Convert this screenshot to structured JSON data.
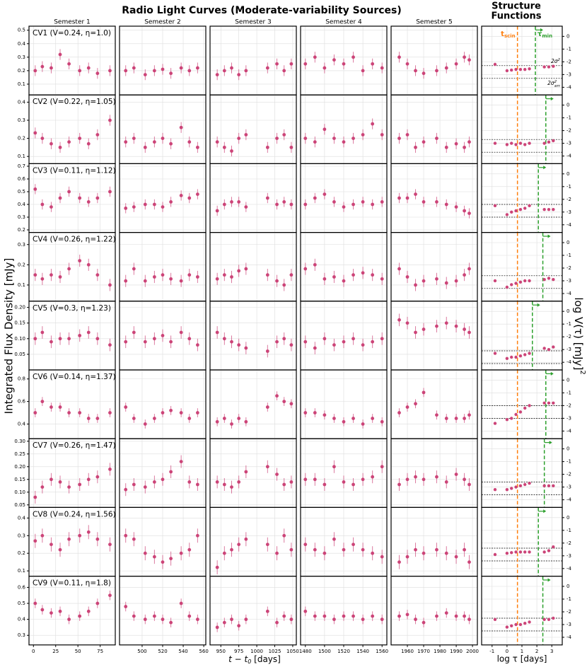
{
  "chart_data": {
    "type": "light-curve-grid",
    "title": "Radio Light Curves (Moderate-variability Sources)",
    "ylabel": "Integrated Flux Density [mJy]",
    "xlabel": {
      "main": "t − t",
      "sub": "0",
      "rest": " [days]"
    },
    "color": "#cc4478",
    "grid": true,
    "semesters": [
      {
        "name": "Semester 1",
        "xlim": [
          -5,
          92
        ],
        "xticks": [
          0,
          25,
          50,
          75
        ],
        "x": [
          2,
          10,
          20,
          30,
          40,
          52,
          62,
          72,
          86
        ]
      },
      {
        "name": "Semester 2",
        "xlim": [
          478,
          562
        ],
        "xticks": [
          500,
          520,
          540,
          560
        ],
        "x": [
          484,
          492,
          503,
          512,
          520,
          528,
          538,
          546,
          554
        ]
      },
      {
        "name": "Semester 3",
        "xlim": [
          935,
          1055
        ],
        "xticks": [
          950,
          975,
          1000,
          1025,
          1050
        ],
        "x": [
          945,
          955,
          965,
          975,
          985,
          1015,
          1028,
          1038,
          1048
        ]
      },
      {
        "name": "Semester 4",
        "xlim": [
          1475,
          1565
        ],
        "xticks": [
          1480,
          1500,
          1520,
          1540,
          1560
        ],
        "x": [
          1480,
          1490,
          1500,
          1510,
          1520,
          1530,
          1540,
          1550,
          1560
        ]
      },
      {
        "name": "Semester 5",
        "xlim": [
          1950,
          2003
        ],
        "xticks": [
          1960,
          1970,
          1980,
          1990,
          2000
        ],
        "x": [
          1955,
          1960,
          1965,
          1970,
          1978,
          1984,
          1990,
          1995,
          1998
        ]
      }
    ],
    "sources": [
      {
        "name": "CV1 (V=0.24, η=1.0)",
        "ylim": [
          0.02,
          0.53
        ],
        "yticks": [
          0.1,
          0.2,
          0.3,
          0.4,
          0.5
        ],
        "err": 0.04,
        "values": [
          [
            0.2,
            0.23,
            0.22,
            0.32,
            0.25,
            0.2,
            0.22,
            0.18,
            0.2
          ],
          [
            0.2,
            0.22,
            0.17,
            0.2,
            0.21,
            0.18,
            0.22,
            0.2,
            0.22
          ],
          [
            0.17,
            0.2,
            0.22,
            0.17,
            0.2,
            0.22,
            0.25,
            0.2,
            0.25
          ],
          [
            0.25,
            0.3,
            0.22,
            0.28,
            0.25,
            0.3,
            0.2,
            0.25,
            0.22
          ],
          [
            0.3,
            0.25,
            0.2,
            0.18,
            0.2,
            0.22,
            0.25,
            0.3,
            0.28
          ]
        ]
      },
      {
        "name": "CV2 (V=0.22, η=1.05)",
        "ylim": [
          0.06,
          0.44
        ],
        "yticks": [
          0.1,
          0.2,
          0.3,
          0.4
        ],
        "err": 0.03,
        "values": [
          [
            0.23,
            0.2,
            0.17,
            0.15,
            0.18,
            0.2,
            0.17,
            0.22,
            0.3
          ],
          [
            0.18,
            0.2,
            0.15,
            0.18,
            0.2,
            0.17,
            0.26,
            0.18,
            0.15
          ],
          [
            0.18,
            0.15,
            0.13,
            0.2,
            0.22,
            0.15,
            0.2,
            0.22,
            0.15
          ],
          [
            0.2,
            0.18,
            0.25,
            0.2,
            0.18,
            0.2,
            0.22,
            0.28,
            0.22
          ],
          [
            0.2,
            0.22,
            0.15,
            0.18,
            0.2,
            0.15,
            0.17,
            0.15,
            0.18
          ]
        ]
      },
      {
        "name": "CV3 (V=0.11, η=1.12)",
        "ylim": [
          0.18,
          0.72
        ],
        "yticks": [
          0.2,
          0.3,
          0.4,
          0.5,
          0.6,
          0.7
        ],
        "err": 0.04,
        "values": [
          [
            0.52,
            0.4,
            0.38,
            0.45,
            0.5,
            0.45,
            0.42,
            0.45,
            0.5
          ],
          [
            0.37,
            0.38,
            0.4,
            0.4,
            0.38,
            0.42,
            0.47,
            0.45,
            0.48
          ],
          [
            0.35,
            0.4,
            0.42,
            0.42,
            0.38,
            0.45,
            0.4,
            0.42,
            0.4
          ],
          [
            0.4,
            0.45,
            0.48,
            0.42,
            0.38,
            0.4,
            0.42,
            0.4,
            0.42
          ],
          [
            0.45,
            0.45,
            0.48,
            0.42,
            0.42,
            0.4,
            0.38,
            0.35,
            0.33
          ]
        ]
      },
      {
        "name": "CV4 (V=0.26, η=1.22)",
        "ylim": [
          0.02,
          0.36
        ],
        "yticks": [
          0.1,
          0.2,
          0.3
        ],
        "err": 0.03,
        "values": [
          [
            0.15,
            0.13,
            0.15,
            0.14,
            0.18,
            0.22,
            0.2,
            0.15,
            0.1
          ],
          [
            0.12,
            0.18,
            0.12,
            0.14,
            0.15,
            0.13,
            0.12,
            0.15,
            0.14
          ],
          [
            0.13,
            0.15,
            0.14,
            0.17,
            0.18,
            0.15,
            0.12,
            0.1,
            0.15
          ],
          [
            0.18,
            0.2,
            0.13,
            0.14,
            0.12,
            0.15,
            0.16,
            0.15,
            0.13
          ],
          [
            0.18,
            0.14,
            0.1,
            0.12,
            0.13,
            0.11,
            0.12,
            0.15,
            0.18
          ]
        ]
      },
      {
        "name": "CV5 (V=0.3, η=1.23)",
        "ylim": [
          0.0,
          0.22
        ],
        "yticks": [
          {
            "value": 0.05,
            "label": "0.05"
          },
          {
            "value": 0.1,
            "label": "0.10"
          },
          {
            "value": 0.15,
            "label": "0.15"
          },
          {
            "value": 0.2,
            "label": "0.20"
          }
        ],
        "err": 0.02,
        "values": [
          [
            0.1,
            0.12,
            0.09,
            0.1,
            0.1,
            0.11,
            0.12,
            0.1,
            0.08
          ],
          [
            0.09,
            0.12,
            0.09,
            0.1,
            0.11,
            0.09,
            0.12,
            0.1,
            0.08
          ],
          [
            0.12,
            0.1,
            0.09,
            0.08,
            0.07,
            0.06,
            0.09,
            0.1,
            0.08
          ],
          [
            0.09,
            0.07,
            0.1,
            0.08,
            0.09,
            0.1,
            0.08,
            0.09,
            0.1
          ],
          [
            0.16,
            0.15,
            0.12,
            0.13,
            0.14,
            0.15,
            0.14,
            0.13,
            0.12
          ]
        ]
      },
      {
        "name": "CV6 (V=0.14, η=1.37)",
        "ylim": [
          0.27,
          0.88
        ],
        "yticks": [
          0.4,
          0.6,
          0.8
        ],
        "err": 0.04,
        "values": [
          [
            0.5,
            0.6,
            0.55,
            0.55,
            0.5,
            0.5,
            0.45,
            0.45,
            0.5
          ],
          [
            0.55,
            0.45,
            0.4,
            0.45,
            0.5,
            0.52,
            0.5,
            0.45,
            0.5
          ],
          [
            0.42,
            0.45,
            0.4,
            0.45,
            0.42,
            0.55,
            0.65,
            0.6,
            0.58
          ],
          [
            0.5,
            0.5,
            0.48,
            0.45,
            0.42,
            0.45,
            0.4,
            0.45,
            0.42
          ],
          [
            0.5,
            0.55,
            0.58,
            0.68,
            0.48,
            0.45,
            0.45,
            0.45,
            0.48
          ]
        ]
      },
      {
        "name": "CV7 (V=0.26, η=1.47)",
        "ylim": [
          0.04,
          0.31
        ],
        "yticks": [
          {
            "value": 0.05,
            "label": "0.05"
          },
          {
            "value": 0.1,
            "label": "0.10"
          },
          {
            "value": 0.15,
            "label": "0.15"
          },
          {
            "value": 0.2,
            "label": "0.20"
          },
          {
            "value": 0.25,
            "label": "0.25"
          },
          {
            "value": 0.3,
            "label": "0.30"
          }
        ],
        "err": 0.025,
        "values": [
          [
            0.08,
            0.12,
            0.15,
            0.14,
            0.12,
            0.13,
            0.15,
            0.16,
            0.19
          ],
          [
            0.11,
            0.13,
            0.12,
            0.14,
            0.15,
            0.18,
            0.22,
            0.14,
            0.13
          ],
          [
            0.14,
            0.13,
            0.12,
            0.14,
            0.18,
            0.2,
            0.17,
            0.13,
            0.14
          ],
          [
            0.15,
            0.15,
            0.13,
            0.2,
            0.14,
            0.13,
            0.15,
            0.16,
            0.2
          ],
          [
            0.13,
            0.15,
            0.16,
            0.15,
            0.16,
            0.14,
            0.17,
            0.15,
            0.13
          ]
        ]
      },
      {
        "name": "CV8 (V=0.24, η=1.56)",
        "ylim": [
          0.07,
          0.46
        ],
        "yticks": [
          0.1,
          0.2,
          0.3,
          0.4
        ],
        "err": 0.04,
        "values": [
          [
            0.27,
            0.3,
            0.25,
            0.22,
            0.28,
            0.3,
            0.32,
            0.28,
            0.25
          ],
          [
            0.3,
            0.28,
            0.2,
            0.18,
            0.15,
            0.17,
            0.2,
            0.22,
            0.3
          ],
          [
            0.12,
            0.2,
            0.22,
            0.25,
            0.28,
            0.25,
            0.2,
            0.3,
            0.22
          ],
          [
            0.25,
            0.22,
            0.2,
            0.28,
            0.22,
            0.25,
            0.22,
            0.2,
            0.18
          ],
          [
            0.15,
            0.18,
            0.22,
            0.2,
            0.22,
            0.2,
            0.18,
            0.22,
            0.15
          ]
        ]
      },
      {
        "name": "CV9 (V=0.11, η=1.8)",
        "ylim": [
          0.24,
          0.67
        ],
        "yticks": [
          0.3,
          0.4,
          0.5,
          0.6
        ],
        "err": 0.03,
        "values": [
          [
            0.5,
            0.46,
            0.44,
            0.45,
            0.4,
            0.42,
            0.45,
            0.5,
            0.55
          ],
          [
            0.48,
            0.42,
            0.4,
            0.42,
            0.4,
            0.38,
            0.5,
            0.42,
            0.4
          ],
          [
            0.35,
            0.38,
            0.4,
            0.36,
            0.4,
            0.45,
            0.38,
            0.42,
            0.4
          ],
          [
            0.45,
            0.42,
            0.42,
            0.4,
            0.42,
            0.42,
            0.4,
            0.42,
            0.4
          ],
          [
            0.42,
            0.43,
            0.4,
            0.38,
            0.42,
            0.44,
            0.42,
            0.42,
            0.4
          ]
        ]
      }
    ],
    "structure_functions": {
      "type": "structure-function",
      "title": [
        "Structure",
        "Functions"
      ],
      "xlabel": "log τ [days]",
      "ylabel": {
        "main": "log V(τ) [mJy]",
        "sup": "2"
      },
      "xlim": [
        -1.7,
        3.7
      ],
      "xticks": [
        -1,
        0,
        1,
        2,
        3
      ],
      "ylim": [
        -4.6,
        0.8
      ],
      "yticks": [
        0,
        -1,
        -2,
        -3,
        -4
      ],
      "x": [
        -0.8,
        0,
        0.3,
        0.6,
        0.9,
        1.2,
        1.5,
        2.5,
        2.8,
        3.1
      ],
      "t_scin": 0.7,
      "t_scin_label": {
        "main": "t",
        "sub": "scin"
      },
      "t_scin_color": "#ff7f0e",
      "tau_min_label": {
        "main": "τ",
        "sub": "min"
      },
      "tau_min_color": "#2ca02c",
      "tau_min_arrow_y": 0.5,
      "noise_labels": [
        {
          "main": "2σ",
          "sup": "2"
        },
        {
          "main": "2σ",
          "sup": "2",
          "sub": "err"
        }
      ],
      "rows": [
        {
          "values": [
            -2.2,
            -2.7,
            -2.65,
            -2.6,
            -2.6,
            -2.6,
            -2.55,
            -2.4,
            -2.4,
            -2.35
          ],
          "noise": [
            -2.3,
            -3.3
          ],
          "tau_min": 1.9
        },
        {
          "values": [
            -3,
            -3.1,
            -3.0,
            -3.1,
            -3.0,
            -3.1,
            -3.0,
            -3.0,
            -2.9,
            -2.8
          ],
          "noise": [
            -2.7,
            -3.7
          ],
          "tau_min": 2.6
        },
        {
          "values": [
            -2.5,
            -3.2,
            -3.0,
            -2.9,
            -2.8,
            -2.7,
            -2.5,
            -2.8,
            -2.8,
            -2.8
          ],
          "noise": [
            -2.4,
            -3.4
          ],
          "tau_min": 2.1
        },
        {
          "values": [
            -3,
            -3.5,
            -3.3,
            -3.2,
            -3.1,
            -3.0,
            -3.0,
            -2.9,
            -2.8,
            -2.9
          ],
          "noise": [
            -2.6,
            -3.6
          ],
          "tau_min": 2.4
        },
        {
          "values": [
            -3.3,
            -3.7,
            -3.6,
            -3.6,
            -3.5,
            -3.4,
            -3.3,
            -2.9,
            -3.0,
            -2.8
          ],
          "noise": [
            -3.1,
            -4.1
          ],
          "tau_min": 1.7
        },
        {
          "values": [
            -3.4,
            -3.1,
            -3.0,
            -2.7,
            -2.5,
            -2.2,
            -2.0,
            -1.8,
            -1.8,
            -1.8
          ],
          "noise": [
            -2.0,
            -3.0
          ],
          "tau_min": 2.6
        },
        {
          "values": [
            -3.2,
            -3.2,
            -3.1,
            -3.0,
            -2.9,
            -2.8,
            -2.7,
            -2.9,
            -2.9,
            -2.9
          ],
          "noise": [
            -2.6,
            -3.6
          ],
          "tau_min": 2.5
        },
        {
          "values": [
            -2.9,
            -2.8,
            -2.75,
            -2.7,
            -2.7,
            -2.7,
            -2.7,
            -2.7,
            -2.6,
            -2.3
          ],
          "noise": [
            -2.4,
            -3.4
          ],
          "tau_min": 2.1
        },
        {
          "values": [
            -2.6,
            -3.2,
            -3.1,
            -3.0,
            -3.0,
            -2.9,
            -2.8,
            -2.6,
            -2.6,
            -2.5
          ],
          "noise": [
            -2.5,
            -3.5
          ],
          "tau_min": 2.4
        }
      ]
    }
  }
}
